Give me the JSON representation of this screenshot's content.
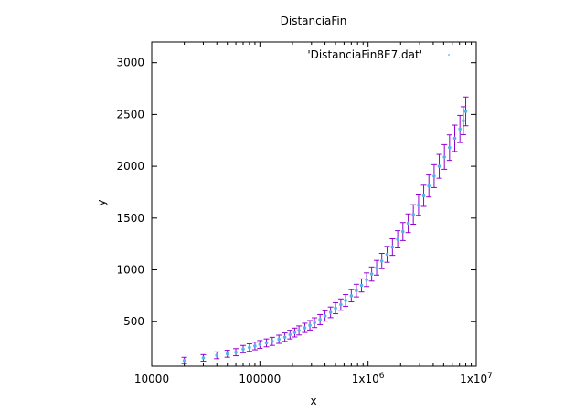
{
  "chart_data": {
    "type": "scatter",
    "title": "DistanciaFin",
    "xlabel": "x",
    "ylabel": "y",
    "xscale": "log",
    "xlim": [
      10000,
      10000000
    ],
    "ylim": [
      70,
      3200
    ],
    "x_ticks": [
      {
        "value": 10000,
        "label": "10000"
      },
      {
        "value": 100000,
        "label": "100000"
      },
      {
        "value": 1000000,
        "label": "1x10",
        "sup": "6"
      },
      {
        "value": 10000000,
        "label": "1x10",
        "sup": "7"
      }
    ],
    "y_ticks": [
      500,
      1000,
      1500,
      2000,
      2500,
      3000
    ],
    "grid": false,
    "legend": {
      "position": "top-right",
      "entries": [
        {
          "name": "'DistanciaFin8E7.dat'"
        }
      ]
    },
    "colors": {
      "points": "#56b4e9",
      "errorbars": "#9400d3"
    },
    "series": [
      {
        "name": "'DistanciaFin8E7.dat'",
        "points": [
          [
            20000,
            125
          ],
          [
            30000,
            150
          ],
          [
            40000,
            175
          ],
          [
            50000,
            190
          ],
          [
            60000,
            205
          ],
          [
            70000,
            235
          ],
          [
            80000,
            250
          ],
          [
            90000,
            265
          ],
          [
            100000,
            280
          ],
          [
            115000,
            295
          ],
          [
            130000,
            310
          ],
          [
            150000,
            330
          ],
          [
            170000,
            350
          ],
          [
            190000,
            375
          ],
          [
            210000,
            395
          ],
          [
            230000,
            415
          ],
          [
            260000,
            440
          ],
          [
            290000,
            465
          ],
          [
            320000,
            490
          ],
          [
            360000,
            520
          ],
          [
            400000,
            555
          ],
          [
            450000,
            590
          ],
          [
            500000,
            630
          ],
          [
            560000,
            665
          ],
          [
            620000,
            705
          ],
          [
            700000,
            750
          ],
          [
            780000,
            800
          ],
          [
            870000,
            850
          ],
          [
            970000,
            905
          ],
          [
            1080000,
            960
          ],
          [
            1200000,
            1020
          ],
          [
            1340000,
            1085
          ],
          [
            1500000,
            1150
          ],
          [
            1680000,
            1220
          ],
          [
            1880000,
            1295
          ],
          [
            2100000,
            1370
          ],
          [
            2350000,
            1450
          ],
          [
            2620000,
            1535
          ],
          [
            2930000,
            1625
          ],
          [
            3270000,
            1715
          ],
          [
            3650000,
            1810
          ],
          [
            4080000,
            1905
          ],
          [
            4550000,
            2000
          ],
          [
            5080000,
            2090
          ],
          [
            5670000,
            2180
          ],
          [
            6330000,
            2270
          ],
          [
            7070000,
            2360
          ],
          [
            7600000,
            2440
          ],
          [
            8000000,
            2530
          ]
        ]
      }
    ]
  }
}
